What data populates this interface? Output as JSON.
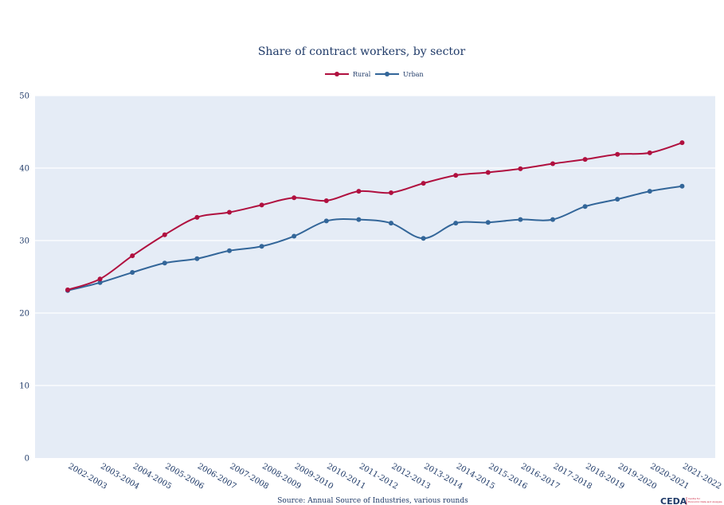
{
  "chart_data": {
    "type": "line",
    "title": "Share of contract workers, by sector",
    "categories": [
      "2002-2003",
      "2003-2004",
      "2004-2005",
      "2005-2006",
      "2006-2007",
      "2007-2008",
      "2008-2009",
      "2009-2010",
      "2010-2011",
      "2011-2012",
      "2012-2013",
      "2013-2014",
      "2014-2015",
      "2015-2016",
      "2016-2017",
      "2017-2018",
      "2018-2019",
      "2019-2020",
      "2020-2021",
      "2021-2022"
    ],
    "series": [
      {
        "name": "Rural",
        "color": "#b0103f",
        "values": [
          23.2,
          24.7,
          27.9,
          30.8,
          33.2,
          33.9,
          34.9,
          35.9,
          35.5,
          36.8,
          36.6,
          37.9,
          39.0,
          39.4,
          39.9,
          40.6,
          41.2,
          41.9,
          42.1,
          43.5
        ]
      },
      {
        "name": "Urban",
        "color": "#336699",
        "values": [
          23.1,
          24.2,
          25.6,
          26.9,
          27.5,
          28.6,
          29.2,
          30.6,
          32.7,
          32.9,
          32.4,
          30.3,
          32.4,
          32.5,
          32.9,
          32.9,
          34.7,
          35.7,
          36.8,
          37.5
        ]
      }
    ],
    "yticks": [
      0,
      10,
      20,
      30,
      40,
      50
    ],
    "ylim": [
      0,
      50
    ],
    "xlabel": "",
    "ylabel": "",
    "grid": true,
    "legend_position": "top-center",
    "plot_background": "#e5ecf6",
    "source": "Source: Annual Source of Industries, various rounds",
    "logo": {
      "name": "CEDA",
      "subtitle": "Centre for Economic Data and Analysis"
    }
  }
}
